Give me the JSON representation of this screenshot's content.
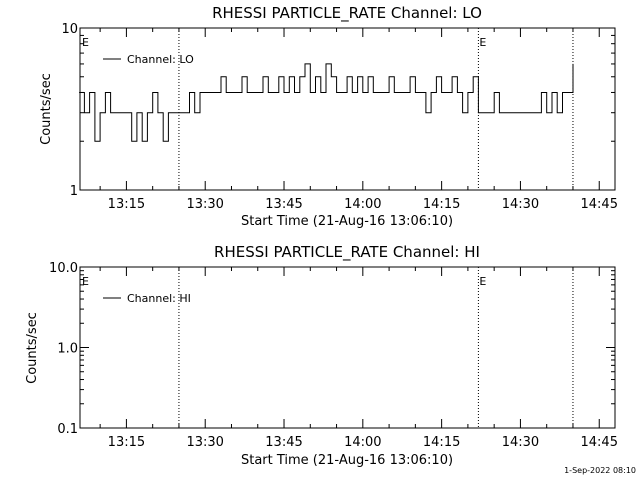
{
  "footer_timestamp": "1-Sep-2022 08:10",
  "chart_data": [
    {
      "type": "line",
      "title": "RHESSI PARTICLE_RATE Channel: LO",
      "xlabel": "Start Time (21-Aug-16 13:06:10)",
      "ylabel": "Counts/sec",
      "yscale": "log",
      "ylim": [
        1,
        10
      ],
      "yticks": [
        1,
        10
      ],
      "ytick_labels": [
        "1",
        "10"
      ],
      "xlim": [
        "13:06:10",
        "14:48:00"
      ],
      "xticks": [
        "13:15",
        "13:30",
        "13:45",
        "14:00",
        "14:15",
        "14:30",
        "14:45"
      ],
      "grid": false,
      "legend_position": "top-left",
      "event_lines": [
        "13:25",
        "14:22",
        "14:40"
      ],
      "event_markers": [
        {
          "label": "E",
          "x": "13:06"
        },
        {
          "label": "E",
          "x": "14:22"
        }
      ],
      "series": [
        {
          "name": "Channel: LO",
          "x": [
            "13:06",
            "13:07",
            "13:08",
            "13:09",
            "13:10",
            "13:11",
            "13:12",
            "13:13",
            "13:14",
            "13:15",
            "13:16",
            "13:17",
            "13:18",
            "13:19",
            "13:20",
            "13:21",
            "13:22",
            "13:23",
            "13:24",
            "13:25",
            "13:26",
            "13:27",
            "13:28",
            "13:29",
            "13:30",
            "13:31",
            "13:32",
            "13:33",
            "13:34",
            "13:35",
            "13:36",
            "13:37",
            "13:38",
            "13:39",
            "13:40",
            "13:41",
            "13:42",
            "13:43",
            "13:44",
            "13:45",
            "13:46",
            "13:47",
            "13:48",
            "13:49",
            "13:50",
            "13:51",
            "13:52",
            "13:53",
            "13:54",
            "13:55",
            "13:56",
            "13:57",
            "13:58",
            "13:59",
            "14:00",
            "14:01",
            "14:02",
            "14:03",
            "14:04",
            "14:05",
            "14:06",
            "14:07",
            "14:08",
            "14:09",
            "14:10",
            "14:11",
            "14:12",
            "14:13",
            "14:14",
            "14:15",
            "14:16",
            "14:17",
            "14:18",
            "14:19",
            "14:20",
            "14:21",
            "14:22",
            "14:23",
            "14:24",
            "14:25",
            "14:26",
            "14:27",
            "14:28",
            "14:29",
            "14:30",
            "14:31",
            "14:32",
            "14:33",
            "14:34",
            "14:35",
            "14:36",
            "14:37",
            "14:38",
            "14:39",
            "14:40"
          ],
          "values": [
            4,
            3,
            4,
            2,
            3,
            4,
            3,
            3,
            3,
            3,
            2,
            3,
            2,
            3,
            4,
            3,
            2,
            3,
            3,
            3,
            3,
            4,
            3,
            4,
            4,
            4,
            4,
            5,
            4,
            4,
            4,
            5,
            4,
            4,
            4,
            5,
            4,
            4,
            5,
            4,
            5,
            4,
            5,
            6,
            4,
            5,
            4,
            6,
            5,
            4,
            4,
            5,
            4,
            5,
            4,
            5,
            4,
            4,
            4,
            5,
            4,
            4,
            4,
            5,
            4,
            4,
            3,
            4,
            5,
            4,
            4,
            5,
            4,
            3,
            4,
            5,
            3,
            3,
            3,
            4,
            3,
            3,
            3,
            3,
            3,
            3,
            3,
            3,
            4,
            3,
            4,
            3,
            4,
            4,
            6
          ]
        }
      ]
    },
    {
      "type": "line",
      "title": "RHESSI PARTICLE_RATE Channel: HI",
      "xlabel": "Start Time (21-Aug-16 13:06:10)",
      "ylabel": "Counts/sec",
      "yscale": "log",
      "ylim": [
        0.1,
        10.0
      ],
      "yticks": [
        0.1,
        1.0,
        10.0
      ],
      "ytick_labels": [
        "0.1",
        "1.0",
        "10.0"
      ],
      "xlim": [
        "13:06:10",
        "14:48:00"
      ],
      "xticks": [
        "13:15",
        "13:30",
        "13:45",
        "14:00",
        "14:15",
        "14:30",
        "14:45"
      ],
      "grid": false,
      "legend_position": "top-left",
      "event_lines": [
        "13:25",
        "14:22",
        "14:40"
      ],
      "event_markers": [
        {
          "label": "E",
          "x": "13:06"
        },
        {
          "label": "E",
          "x": "14:22"
        }
      ],
      "series": [
        {
          "name": "Channel: HI",
          "x": [],
          "values": []
        }
      ]
    }
  ]
}
